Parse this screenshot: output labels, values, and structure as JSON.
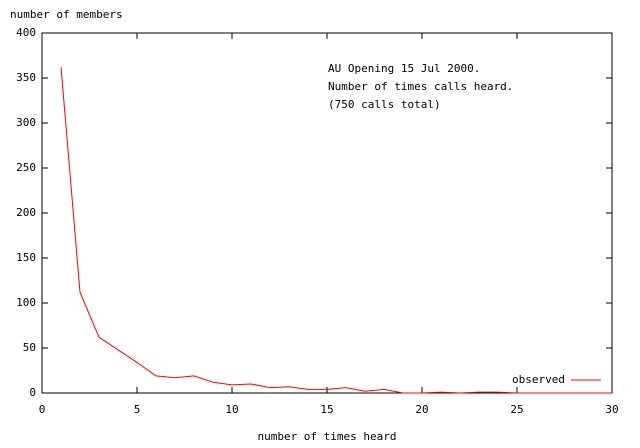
{
  "chart_data": {
    "type": "line",
    "ylabel": "number of members",
    "xlabel": "number of times heard",
    "annotation": [
      "AU Opening 15 Jul 2000.",
      "Number of times calls heard.",
      "(750 calls total)"
    ],
    "x": [
      1,
      2,
      3,
      4,
      5,
      6,
      7,
      8,
      9,
      10,
      11,
      12,
      13,
      14,
      15,
      16,
      17,
      18,
      19,
      20,
      21,
      22,
      23,
      24,
      25,
      26,
      27,
      28,
      29,
      30
    ],
    "series": [
      {
        "name": "observed",
        "color": "#ff0000",
        "values": [
          362,
          112,
          62,
          48,
          34,
          19,
          17,
          19,
          12,
          9,
          10,
          6,
          7,
          4,
          4,
          6,
          2,
          4,
          0,
          0,
          1,
          0,
          1,
          1,
          0,
          0,
          0,
          0,
          0,
          0
        ]
      }
    ],
    "xlim": [
      0,
      30
    ],
    "xticks": [
      0,
      5,
      10,
      15,
      20,
      25,
      30
    ],
    "ylim": [
      0,
      400
    ],
    "yticks": [
      0,
      50,
      100,
      150,
      200,
      250,
      300,
      350,
      400
    ],
    "grid": false,
    "legend": "bottom-right"
  }
}
